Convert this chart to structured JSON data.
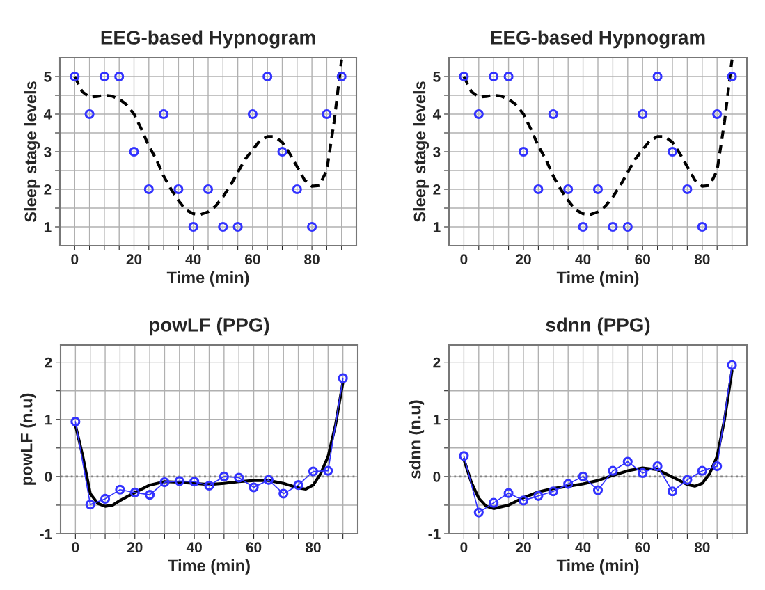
{
  "chart_data": [
    {
      "type": "scatter",
      "title": "EEG-based Hypnogram",
      "xlabel": "Time (min)",
      "ylabel": "Sleep stage levels",
      "xlim": [
        -5,
        95
      ],
      "ylim": [
        0.5,
        5.5
      ],
      "xticks": [
        0,
        {
          "value": 5,
          "label": null
        },
        {
          "value": 10,
          "label": null
        },
        {
          "value": 15,
          "label": null
        },
        20,
        {
          "value": 25,
          "label": null
        },
        {
          "value": 30,
          "label": null
        },
        {
          "value": 35,
          "label": null
        },
        40,
        {
          "value": 45,
          "label": null
        },
        {
          "value": 50,
          "label": null
        },
        {
          "value": 55,
          "label": null
        },
        60,
        {
          "value": 65,
          "label": null
        },
        {
          "value": 70,
          "label": null
        },
        {
          "value": 75,
          "label": null
        },
        80,
        {
          "value": 85,
          "label": null
        },
        {
          "value": 90,
          "label": null
        }
      ],
      "yticks": [
        1,
        {
          "value": 1.5,
          "label": null
        },
        2,
        {
          "value": 2.5,
          "label": null
        },
        3,
        {
          "value": 3.5,
          "label": null
        },
        4,
        {
          "value": 4.5,
          "label": null
        },
        5
      ],
      "grid": true,
      "marker": "circle",
      "series": [
        {
          "color": "#3333ff",
          "x": [
            0,
            5,
            10,
            15,
            20,
            25,
            30,
            35,
            40,
            45,
            50,
            55,
            60,
            65,
            70,
            75,
            80,
            85,
            90
          ],
          "values": [
            5,
            4,
            5,
            5,
            3,
            2,
            4,
            2,
            1,
            2,
            1,
            1,
            4,
            5,
            3,
            2,
            1,
            4,
            5
          ]
        },
        {
          "type": "line",
          "color": "#000000",
          "line_style": "dashed",
          "marker": "none",
          "x": [
            0,
            2.5,
            5,
            7.5,
            10,
            12.5,
            15,
            17.5,
            20,
            22.5,
            25,
            27.5,
            30,
            32.5,
            35,
            37.5,
            40,
            42.5,
            45,
            47.5,
            50,
            52.5,
            55,
            57.5,
            60,
            62.5,
            65,
            67.5,
            70,
            72.5,
            75,
            77.5,
            80,
            82.5,
            85,
            87.5,
            90
          ],
          "values": [
            5.0,
            4.6,
            4.45,
            4.47,
            4.5,
            4.48,
            4.4,
            4.25,
            4.0,
            3.6,
            3.15,
            2.8,
            2.35,
            2.0,
            1.7,
            1.45,
            1.35,
            1.33,
            1.4,
            1.55,
            1.8,
            2.1,
            2.45,
            2.8,
            3.05,
            3.3,
            3.4,
            3.4,
            3.25,
            2.95,
            2.6,
            2.25,
            2.08,
            2.1,
            2.5,
            3.8,
            5.45
          ]
        }
      ]
    },
    {
      "type": "scatter",
      "title": "EEG-based Hypnogram",
      "xlabel": "Time (min)",
      "ylabel": "Sleep stage levels",
      "xlim": [
        -5,
        95
      ],
      "ylim": [
        0.5,
        5.5
      ],
      "xticks": [
        0,
        {
          "value": 5,
          "label": null
        },
        {
          "value": 10,
          "label": null
        },
        {
          "value": 15,
          "label": null
        },
        20,
        {
          "value": 25,
          "label": null
        },
        {
          "value": 30,
          "label": null
        },
        {
          "value": 35,
          "label": null
        },
        40,
        {
          "value": 45,
          "label": null
        },
        {
          "value": 50,
          "label": null
        },
        {
          "value": 55,
          "label": null
        },
        60,
        {
          "value": 65,
          "label": null
        },
        {
          "value": 70,
          "label": null
        },
        {
          "value": 75,
          "label": null
        },
        80,
        {
          "value": 85,
          "label": null
        },
        {
          "value": 90,
          "label": null
        }
      ],
      "yticks": [
        1,
        {
          "value": 1.5,
          "label": null
        },
        2,
        {
          "value": 2.5,
          "label": null
        },
        3,
        {
          "value": 3.5,
          "label": null
        },
        4,
        {
          "value": 4.5,
          "label": null
        },
        5
      ],
      "grid": true,
      "marker": "circle",
      "series": [
        {
          "color": "#3333ff",
          "x": [
            0,
            5,
            10,
            15,
            20,
            25,
            30,
            35,
            40,
            45,
            50,
            55,
            60,
            65,
            70,
            75,
            80,
            85,
            90
          ],
          "values": [
            5,
            4,
            5,
            5,
            3,
            2,
            4,
            2,
            1,
            2,
            1,
            1,
            4,
            5,
            3,
            2,
            1,
            4,
            5
          ]
        },
        {
          "type": "line",
          "color": "#000000",
          "line_style": "dashed",
          "marker": "none",
          "x": [
            0,
            2.5,
            5,
            7.5,
            10,
            12.5,
            15,
            17.5,
            20,
            22.5,
            25,
            27.5,
            30,
            32.5,
            35,
            37.5,
            40,
            42.5,
            45,
            47.5,
            50,
            52.5,
            55,
            57.5,
            60,
            62.5,
            65,
            67.5,
            70,
            72.5,
            75,
            77.5,
            80,
            82.5,
            85,
            87.5,
            90
          ],
          "values": [
            5.0,
            4.6,
            4.45,
            4.47,
            4.5,
            4.48,
            4.4,
            4.25,
            4.0,
            3.6,
            3.15,
            2.8,
            2.35,
            2.0,
            1.7,
            1.45,
            1.35,
            1.33,
            1.4,
            1.55,
            1.8,
            2.1,
            2.45,
            2.8,
            3.05,
            3.3,
            3.4,
            3.4,
            3.25,
            2.95,
            2.6,
            2.25,
            2.08,
            2.1,
            2.5,
            3.8,
            5.45
          ]
        }
      ]
    },
    {
      "type": "line",
      "title": "powLF (PPG)",
      "xlabel": "Time (min)",
      "ylabel": "powLF (n.u)",
      "xlim": [
        -5,
        95
      ],
      "ylim": [
        -1,
        2.3
      ],
      "xticks": [
        0,
        {
          "value": 5,
          "label": null
        },
        {
          "value": 10,
          "label": null
        },
        {
          "value": 15,
          "label": null
        },
        20,
        {
          "value": 25,
          "label": null
        },
        {
          "value": 30,
          "label": null
        },
        {
          "value": 35,
          "label": null
        },
        40,
        {
          "value": 45,
          "label": null
        },
        {
          "value": 50,
          "label": null
        },
        {
          "value": 55,
          "label": null
        },
        60,
        {
          "value": 65,
          "label": null
        },
        {
          "value": 70,
          "label": null
        },
        {
          "value": 75,
          "label": null
        },
        80,
        {
          "value": 85,
          "label": null
        },
        {
          "value": 90,
          "label": null
        }
      ],
      "yticks": [
        -1,
        {
          "value": -0.5,
          "label": null
        },
        0,
        {
          "value": 0.5,
          "label": null
        },
        1,
        {
          "value": 1.5,
          "label": null
        },
        2
      ],
      "grid": true,
      "marker": "circle",
      "line_style": "solid",
      "ref_lines": [
        {
          "axis": "y",
          "value": 0,
          "color": "#808080",
          "line_style": "dotted"
        }
      ],
      "series": [
        {
          "color": "#3333ff",
          "marker": "circle",
          "x": [
            0,
            5,
            10,
            15,
            20,
            25,
            30,
            35,
            40,
            45,
            50,
            55,
            60,
            65,
            70,
            75,
            80,
            85,
            90
          ],
          "values": [
            0.96,
            -0.49,
            -0.39,
            -0.23,
            -0.28,
            -0.32,
            -0.1,
            -0.08,
            -0.09,
            -0.16,
            0,
            -0.02,
            -0.19,
            -0.06,
            -0.3,
            -0.15,
            0.09,
            0.1,
            1.72
          ]
        },
        {
          "color": "#000000",
          "marker": "none",
          "x": [
            0,
            2.5,
            5,
            7.5,
            10,
            12.5,
            15,
            20,
            25,
            30,
            35,
            40,
            45,
            50,
            55,
            60,
            65,
            70,
            75,
            77.5,
            80,
            82.5,
            85,
            87.5,
            90
          ],
          "values": [
            0.9,
            0.35,
            -0.3,
            -0.47,
            -0.52,
            -0.5,
            -0.42,
            -0.28,
            -0.15,
            -0.09,
            -0.1,
            -0.12,
            -0.14,
            -0.12,
            -0.09,
            -0.07,
            -0.07,
            -0.12,
            -0.2,
            -0.22,
            -0.15,
            0.05,
            0.35,
            0.9,
            1.65
          ]
        }
      ]
    },
    {
      "type": "line",
      "title": "sdnn (PPG)",
      "xlabel": "Time (min)",
      "ylabel": "sdnn (n.u)",
      "xlim": [
        -5,
        95
      ],
      "ylim": [
        -1,
        2.3
      ],
      "xticks": [
        0,
        {
          "value": 5,
          "label": null
        },
        {
          "value": 10,
          "label": null
        },
        {
          "value": 15,
          "label": null
        },
        20,
        {
          "value": 25,
          "label": null
        },
        {
          "value": 30,
          "label": null
        },
        {
          "value": 35,
          "label": null
        },
        40,
        {
          "value": 45,
          "label": null
        },
        {
          "value": 50,
          "label": null
        },
        {
          "value": 55,
          "label": null
        },
        60,
        {
          "value": 65,
          "label": null
        },
        {
          "value": 70,
          "label": null
        },
        {
          "value": 75,
          "label": null
        },
        80,
        {
          "value": 85,
          "label": null
        },
        {
          "value": 90,
          "label": null
        }
      ],
      "yticks": [
        -1,
        {
          "value": -0.5,
          "label": null
        },
        0,
        {
          "value": 0.5,
          "label": null
        },
        1,
        {
          "value": 1.5,
          "label": null
        },
        2
      ],
      "grid": true,
      "marker": "circle",
      "line_style": "solid",
      "ref_lines": [
        {
          "axis": "y",
          "value": 0,
          "color": "#808080",
          "line_style": "dotted"
        }
      ],
      "series": [
        {
          "color": "#3333ff",
          "marker": "circle",
          "x": [
            0,
            5,
            10,
            15,
            20,
            25,
            30,
            35,
            40,
            45,
            50,
            55,
            60,
            65,
            70,
            75,
            80,
            85,
            90
          ],
          "values": [
            0.36,
            -0.63,
            -0.46,
            -0.29,
            -0.42,
            -0.34,
            -0.26,
            -0.13,
            0,
            -0.24,
            0.1,
            0.26,
            0.06,
            0.18,
            -0.26,
            -0.06,
            0.1,
            0.18,
            1.95
          ]
        },
        {
          "color": "#000000",
          "marker": "none",
          "x": [
            0,
            2.5,
            5,
            7.5,
            10,
            15,
            20,
            25,
            30,
            35,
            40,
            45,
            50,
            55,
            60,
            65,
            70,
            75,
            77.5,
            80,
            82.5,
            85,
            87.5,
            90
          ],
          "values": [
            0.3,
            -0.1,
            -0.38,
            -0.52,
            -0.56,
            -0.5,
            -0.37,
            -0.27,
            -0.21,
            -0.17,
            -0.13,
            -0.07,
            0.02,
            0.1,
            0.15,
            0.12,
            -0.01,
            -0.14,
            -0.17,
            -0.12,
            0.05,
            0.35,
            1.0,
            1.85
          ]
        }
      ]
    }
  ]
}
